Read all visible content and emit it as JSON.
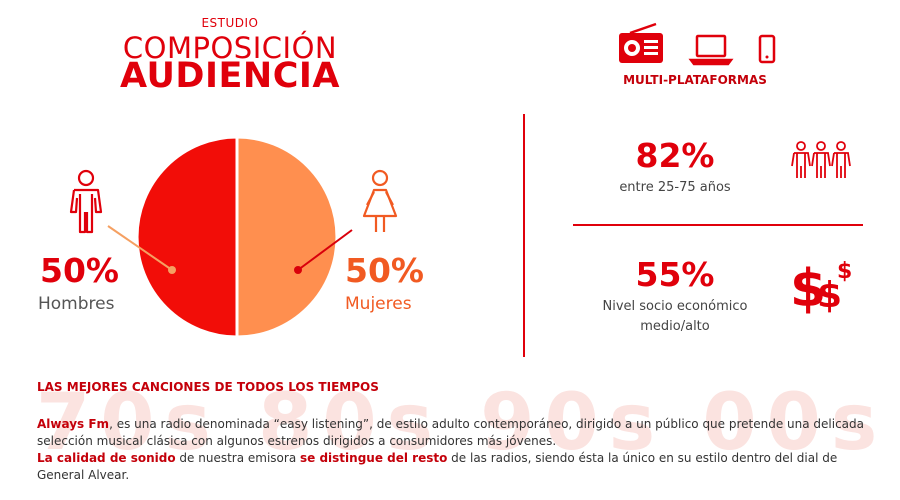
{
  "header": {
    "kicker": "ESTUDIO",
    "title_line1": "COMPOSICIÓN",
    "title_line2": "AUDIENCIA"
  },
  "chart_data": {
    "type": "pie",
    "slices": [
      {
        "label": "Hombres",
        "value": 50,
        "display": "50%",
        "color": "#f20d08"
      },
      {
        "label": "Mujeres",
        "value": 50,
        "display": "50%",
        "color": "#ff8f4f"
      }
    ]
  },
  "platforms": {
    "label": "MULTI-PLATAFORMAS",
    "icons": [
      "radio-icon",
      "laptop-icon",
      "smartphone-icon"
    ]
  },
  "stats": [
    {
      "value": "82%",
      "label": "entre 25-75 años",
      "icon": "group-people-icon"
    },
    {
      "value": "55%",
      "label_line1": "Nivel socio económico",
      "label_line2": "medio/alto",
      "icon": "dollar-signs-icon",
      "icon_glyph": "$"
    }
  ],
  "background_text": "70s 80s 90s 00s",
  "description": {
    "heading": "LAS MEJORES CANCIONES DE TODOS LOS TIEMPOS",
    "p1_bold": "Always Fm",
    "p1_rest": ", es una radio denominada “easy listening”, de estilo adulto contemporáneo, dirigido a un público que pretende una delicada selección musical clásica con algunos estrenos dirigidos a consumidores más jóvenes.",
    "p2_bold1": "La calidad de sonido",
    "p2_mid": " de nuestra emisora ",
    "p2_bold2": "se distingue del resto",
    "p2_rest": " de las radios, siendo ésta la único en su estilo dentro del dial de General Alvear."
  },
  "colors": {
    "primary": "#e0000b",
    "accent": "#f15a22",
    "pie_red": "#f20d08",
    "pie_orange": "#ff8f4f"
  }
}
